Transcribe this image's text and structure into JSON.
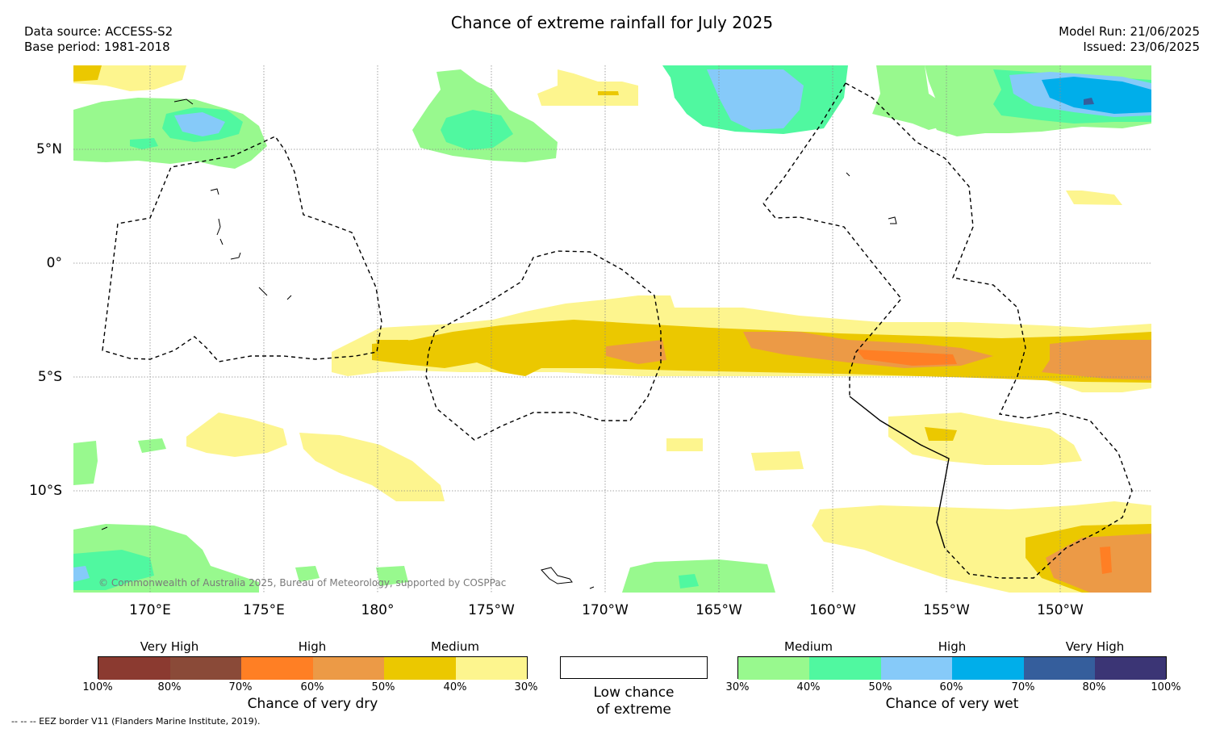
{
  "header": {
    "title": "Chance of extreme rainfall for July 2025",
    "data_source": "Data source: ACCESS-S2",
    "base_period": "Base period: 1981-2018",
    "model_run": "Model Run: 21/06/2025",
    "issued": "Issued: 23/06/2025"
  },
  "map": {
    "lat_labels": [
      "5°N",
      "0°",
      "5°S",
      "10°S"
    ],
    "lon_labels": [
      "170°E",
      "175°E",
      "180°",
      "175°W",
      "170°W",
      "165°W",
      "160°W",
      "155°W",
      "150°W"
    ],
    "credit": "© Commonwealth of Australia 2025, Bureau of Meteorology, supported by COSPPac",
    "eez_note": "--  --  -- EEZ border V11 (Flanders Marine Institute, 2019)."
  },
  "legend": {
    "dry": {
      "categories": [
        "Very High",
        "High",
        "Medium"
      ],
      "colors": [
        "#8b3a30",
        "#8a4a38",
        "#ff7f24",
        "#ec9a46",
        "#ebc800",
        "#fdf58e"
      ],
      "ticks": [
        "100%",
        "80%",
        "70%",
        "60%",
        "50%",
        "40%",
        "30%"
      ],
      "label": "Chance of very dry"
    },
    "neutral": {
      "label_line1": "Low chance",
      "label_line2": "of extreme"
    },
    "wet": {
      "categories": [
        "Medium",
        "High",
        "Very High"
      ],
      "colors": [
        "#98f98e",
        "#50f8a0",
        "#86caf9",
        "#00aeea",
        "#355e9c",
        "#3b3575"
      ],
      "ticks": [
        "30%",
        "40%",
        "50%",
        "60%",
        "70%",
        "80%",
        "100%"
      ],
      "label": "Chance of very wet"
    }
  }
}
